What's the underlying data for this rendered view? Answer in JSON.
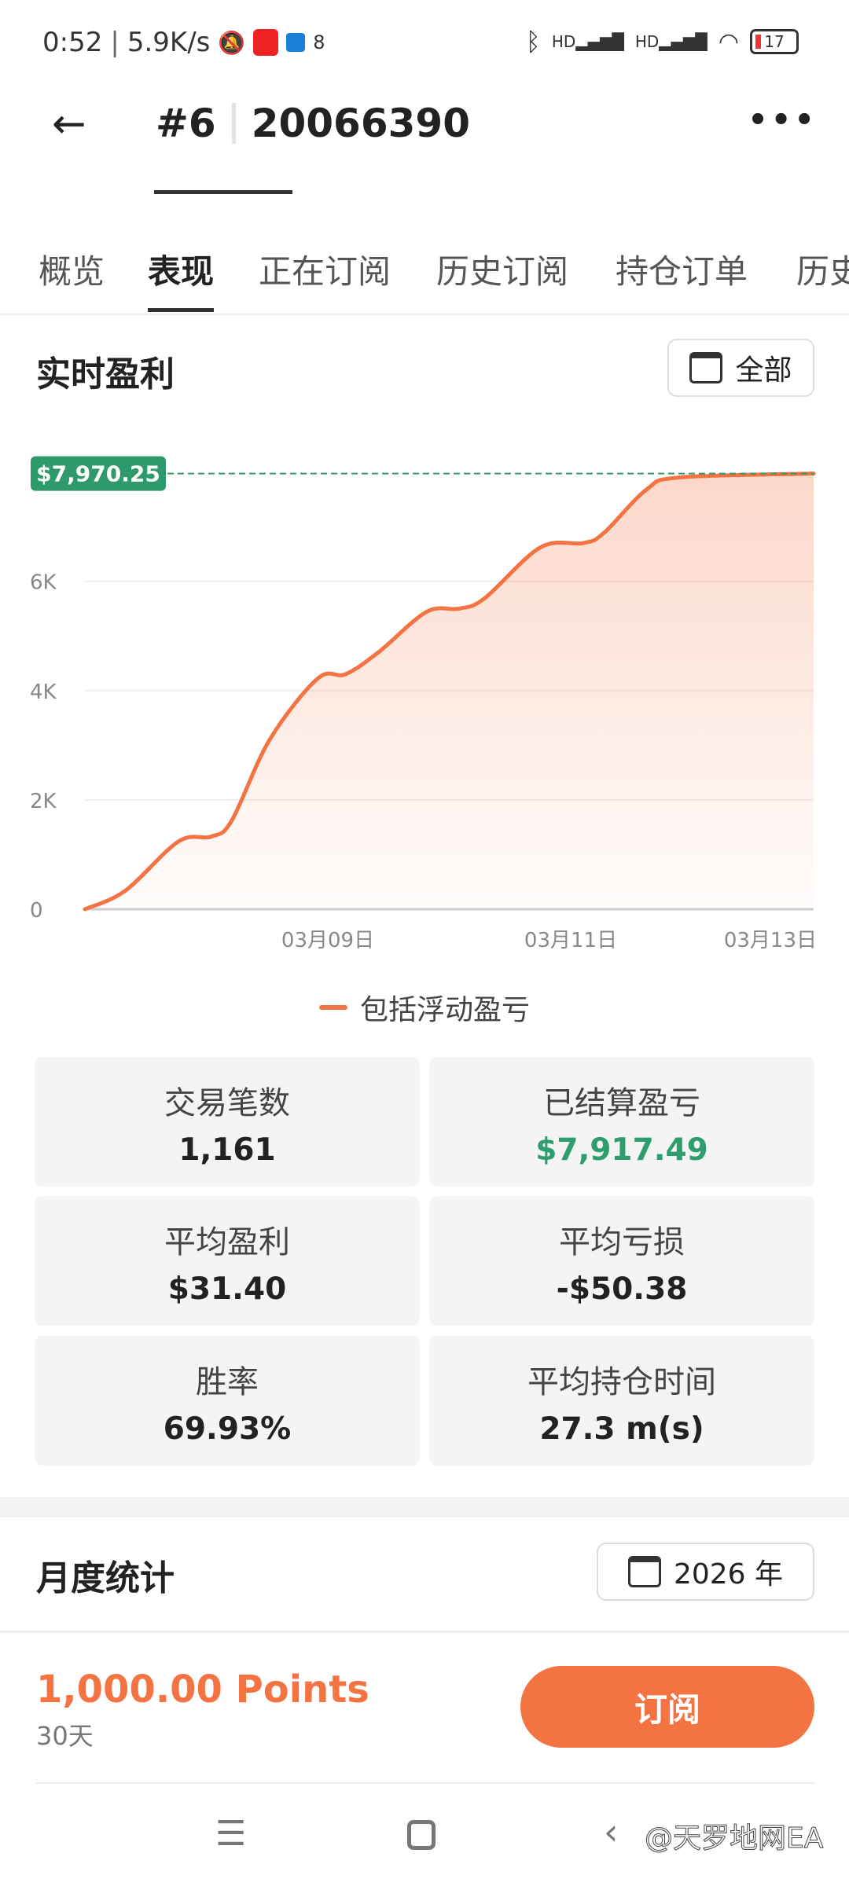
{
  "status_bar": {
    "time": "0:52",
    "speed": "5.9K/s",
    "battery": "17",
    "icons": [
      "mute-icon",
      "app-notification-icon",
      "outlook-icon",
      "vpn-icon",
      "bluetooth-icon",
      "signal-hd-icon",
      "signal-hd-icon",
      "wifi-icon",
      "battery-icon"
    ]
  },
  "header": {
    "hash": "#6",
    "account": "20066390",
    "more": "•••"
  },
  "tabs": [
    {
      "label": "概览"
    },
    {
      "label": "表现",
      "active": true
    },
    {
      "label": "正在订阅"
    },
    {
      "label": "历史订阅"
    },
    {
      "label": "持仓订单"
    },
    {
      "label": "历史订单"
    }
  ],
  "profit": {
    "title": "实时盈利",
    "filter": "全部"
  },
  "chart_data": {
    "type": "area",
    "current_label": "$7,970.25",
    "current_value": 7970.25,
    "yticks": [
      {
        "v": 0,
        "label": "0"
      },
      {
        "v": 2000,
        "label": "2K"
      },
      {
        "v": 4000,
        "label": "4K"
      },
      {
        "v": 6000,
        "label": "6K"
      }
    ],
    "ylim": [
      0,
      8000
    ],
    "xticks": [
      {
        "x": "03-09 00:00",
        "label": "03月09日"
      },
      {
        "x": "03-11 00:00",
        "label": "03月11日"
      },
      {
        "x": "03-13 00:00",
        "label": "03月13日"
      }
    ],
    "xlim": [
      "03-07 00:00",
      "03-13 00:00"
    ],
    "grid": true,
    "legend_position": "bottom",
    "series": [
      {
        "name": "包括浮动盈亏",
        "color": "#f47342",
        "points": [
          [
            "03-07 00:00",
            0
          ],
          [
            "03-07 08:00",
            340
          ],
          [
            "03-07 18:30",
            1240
          ],
          [
            "03-08 01:00",
            1330
          ],
          [
            "03-08 05:00",
            1620
          ],
          [
            "03-08 12:30",
            3100
          ],
          [
            "03-08 22:00",
            4220
          ],
          [
            "03-09 03:30",
            4300
          ],
          [
            "03-09 10:00",
            4700
          ],
          [
            "03-09 19:30",
            5440
          ],
          [
            "03-10 02:00",
            5500
          ],
          [
            "03-10 07:00",
            5690
          ],
          [
            "03-10 18:00",
            6620
          ],
          [
            "03-11 02:30",
            6700
          ],
          [
            "03-11 06:30",
            6880
          ],
          [
            "03-11 15:00",
            7680
          ],
          [
            "03-11 21:30",
            7900
          ],
          [
            "03-12 23:30",
            7970
          ]
        ]
      }
    ],
    "accent_green": "#2e9a6c"
  },
  "stats": [
    {
      "label": "交易笔数",
      "value": "1,161"
    },
    {
      "label": "已结算盈亏",
      "value": "$7,917.49",
      "color": "#2e9e6e"
    },
    {
      "label": "平均盈利",
      "value": "$31.40"
    },
    {
      "label": "平均亏损",
      "value": "-$50.38"
    },
    {
      "label": "胜率",
      "value": "69.93%"
    },
    {
      "label": "平均持仓时间",
      "value": "27.3 m(s)"
    }
  ],
  "monthly": {
    "title": "月度统计",
    "year": "2026 年"
  },
  "footer": {
    "price": "1,000.00 Points",
    "period": "30天",
    "subscribe": "订阅"
  },
  "watermark": "@天罗地网EA"
}
